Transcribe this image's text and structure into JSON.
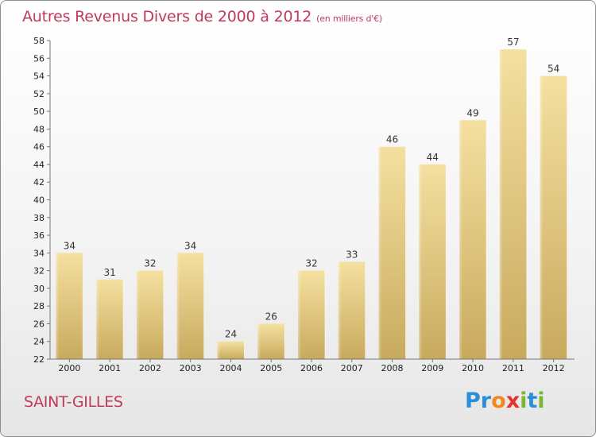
{
  "header": {
    "title": "Autres Revenus Divers de 2000 à 2012",
    "subtitle": "(en milliers d'€)"
  },
  "footer": {
    "commune": "SAINT-GILLES",
    "logo_letters": [
      "P",
      "r",
      "o",
      "x",
      "i",
      "t",
      "i"
    ],
    "logo_colors": [
      "#2a8fd6",
      "#2a8fd6",
      "#f08a1c",
      "#e8312f",
      "#79b72f",
      "#2a8fd6",
      "#79b72f"
    ]
  },
  "chart_data": {
    "type": "bar",
    "title": "Autres Revenus Divers de 2000 à 2012",
    "subtitle": "(en milliers d'€)",
    "xlabel": "",
    "ylabel": "",
    "categories": [
      "2000",
      "2001",
      "2002",
      "2003",
      "2004",
      "2005",
      "2006",
      "2007",
      "2008",
      "2009",
      "2010",
      "2011",
      "2012"
    ],
    "values": [
      34,
      31,
      32,
      34,
      24,
      26,
      32,
      33,
      46,
      44,
      49,
      57,
      54
    ],
    "ylim": [
      22,
      58
    ],
    "yticks": [
      22,
      24,
      26,
      28,
      30,
      32,
      34,
      36,
      38,
      40,
      42,
      44,
      46,
      48,
      50,
      52,
      54,
      56,
      58
    ],
    "grid": false,
    "bar_color_top": "#f5e0a0",
    "bar_color_bottom": "#c8aa5e"
  }
}
